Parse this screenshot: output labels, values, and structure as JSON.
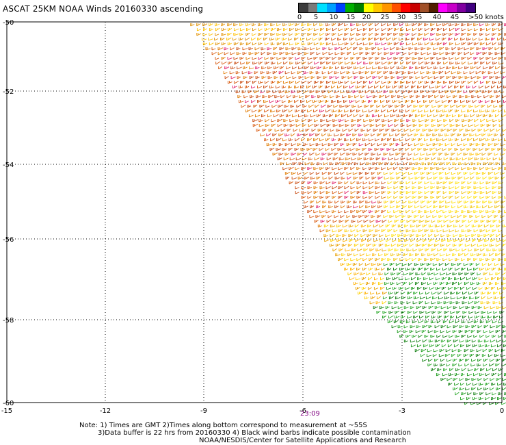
{
  "title": "ASCAT 25KM NOAA Winds 20160330 ascending",
  "colorbar": {
    "colors": [
      "#3c3c3c",
      "#7a7a7a",
      "#00e0ff",
      "#00a0ff",
      "#0040ff",
      "#00b000",
      "#008000",
      "#ffff00",
      "#ffc800",
      "#ff9600",
      "#ff5000",
      "#ff0000",
      "#c80000",
      "#a05028",
      "#501e00",
      "#ff00ff",
      "#c800c8",
      "#8000a0",
      "#400080"
    ],
    "labels": [
      "0",
      "5",
      "10",
      "15",
      "20",
      "25",
      "30",
      "35",
      "40",
      "45",
      ">50 knots"
    ]
  },
  "axes": {
    "lat_labels": [
      "-50",
      "-52",
      "-54",
      "-56",
      "-58",
      "-60"
    ],
    "lon_labels": [
      "-15",
      "-12",
      "-9",
      "-6",
      "-3",
      "0"
    ]
  },
  "time_label": "23:09",
  "notes": {
    "line1": "Note: 1) Times are GMT 2)Times along bottom correspond to measurement at ~55S",
    "line2": "3)Data buffer is 22 hrs from 20160330 4) Black wind barbs indicate possible contamination",
    "line3": "NOAA/NESDIS/Center for Satellite Applications and Research"
  }
}
